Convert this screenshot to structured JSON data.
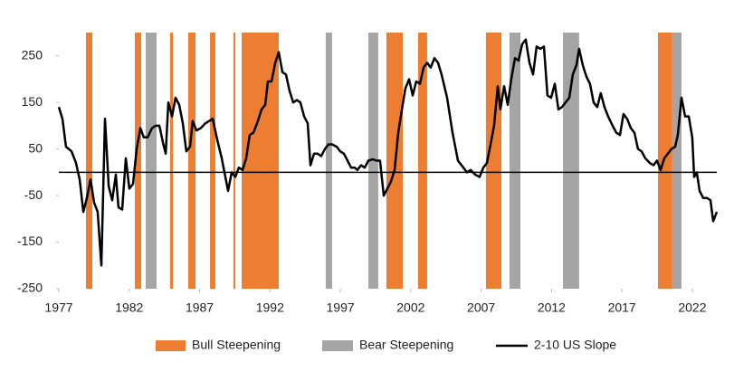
{
  "chart_data": {
    "type": "line",
    "x": [
      1977.0,
      1977.26,
      1977.51,
      1977.9,
      1978.22,
      1978.48,
      1978.74,
      1978.99,
      1979.25,
      1979.51,
      1979.76,
      1980.02,
      1980.28,
      1980.54,
      1980.79,
      1981.05,
      1981.24,
      1981.5,
      1981.76,
      1982.01,
      1982.27,
      1982.53,
      1982.79,
      1983.04,
      1983.3,
      1983.62,
      1983.88,
      1984.14,
      1984.39,
      1984.59,
      1984.78,
      1985.04,
      1985.29,
      1985.55,
      1985.81,
      1986.06,
      1986.32,
      1986.51,
      1986.77,
      1987.09,
      1987.41,
      1987.93,
      1988.25,
      1988.57,
      1989.02,
      1989.28,
      1989.54,
      1989.79,
      1990.05,
      1990.31,
      1990.56,
      1990.82,
      1991.14,
      1991.4,
      1991.66,
      1991.85,
      1992.11,
      1992.37,
      1992.62,
      1992.88,
      1993.14,
      1993.39,
      1993.65,
      1993.91,
      1994.16,
      1994.42,
      1994.68,
      1994.87,
      1995.13,
      1995.39,
      1995.64,
      1995.9,
      1996.16,
      1996.41,
      1996.74,
      1996.99,
      1997.25,
      1997.51,
      1997.76,
      1998.02,
      1998.21,
      1998.47,
      1998.73,
      1998.99,
      1999.31,
      1999.56,
      1999.82,
      2000.08,
      2000.34,
      2000.59,
      2000.85,
      2001.11,
      2001.37,
      2001.62,
      2001.88,
      2002.14,
      2002.39,
      2002.65,
      2002.91,
      2003.16,
      2003.42,
      2003.68,
      2003.94,
      2004.19,
      2004.58,
      2004.97,
      2005.35,
      2005.74,
      2005.99,
      2006.25,
      2006.57,
      2006.89,
      2007.15,
      2007.41,
      2007.67,
      2007.92,
      2008.18,
      2008.37,
      2008.63,
      2008.89,
      2009.14,
      2009.4,
      2009.66,
      2009.91,
      2010.17,
      2010.43,
      2010.69,
      2010.94,
      2011.2,
      2011.46,
      2011.71,
      2011.97,
      2012.23,
      2012.49,
      2012.74,
      2013.0,
      2013.26,
      2013.51,
      2013.77,
      2013.96,
      2014.22,
      2014.48,
      2014.73,
      2014.99,
      2015.25,
      2015.5,
      2015.76,
      2016.02,
      2016.34,
      2016.6,
      2016.86,
      2017.11,
      2017.37,
      2017.63,
      2017.89,
      2018.14,
      2018.4,
      2018.66,
      2018.98,
      2019.24,
      2019.49,
      2019.75,
      2020.01,
      2020.26,
      2020.52,
      2020.78,
      2020.97,
      2021.23,
      2021.49,
      2021.75,
      2022.0,
      2022.13,
      2022.32,
      2022.52,
      2022.77,
      2023.03,
      2023.29,
      2023.48,
      2023.74
    ],
    "series": [
      {
        "name": "2-10 US Slope",
        "color": "#000000",
        "values": [
          140,
          115,
          55,
          45,
          20,
          -15,
          -85,
          -55,
          -15,
          -65,
          -85,
          -200,
          115,
          -30,
          -60,
          -5,
          -75,
          -80,
          30,
          -35,
          -25,
          50,
          95,
          75,
          75,
          95,
          100,
          100,
          65,
          40,
          150,
          120,
          160,
          145,
          105,
          45,
          55,
          110,
          90,
          95,
          105,
          115,
          70,
          30,
          -40,
          0,
          -10,
          10,
          5,
          30,
          80,
          85,
          110,
          135,
          145,
          195,
          195,
          235,
          258,
          215,
          210,
          175,
          150,
          155,
          150,
          120,
          105,
          15,
          40,
          40,
          35,
          50,
          60,
          60,
          55,
          45,
          40,
          25,
          10,
          10,
          5,
          15,
          10,
          25,
          28,
          25,
          25,
          -50,
          -35,
          -20,
          5,
          85,
          135,
          180,
          200,
          165,
          195,
          190,
          225,
          235,
          225,
          245,
          235,
          210,
          160,
          85,
          25,
          10,
          0,
          5,
          -5,
          -10,
          10,
          20,
          60,
          100,
          185,
          135,
          185,
          145,
          200,
          245,
          240,
          275,
          285,
          235,
          210,
          270,
          265,
          270,
          165,
          160,
          190,
          135,
          140,
          150,
          160,
          210,
          230,
          265,
          230,
          205,
          190,
          150,
          140,
          170,
          140,
          120,
          100,
          85,
          80,
          125,
          115,
          95,
          85,
          50,
          45,
          30,
          20,
          15,
          25,
          5,
          30,
          40,
          50,
          55,
          80,
          160,
          120,
          120,
          75,
          -10,
          0,
          -40,
          -55,
          -55,
          -60,
          -105,
          -85
        ]
      }
    ],
    "regions": [
      {
        "name": "Bull Steepening",
        "color": "#ed7d31",
        "spans": [
          [
            1978.93,
            1979.38
          ],
          [
            1982.4,
            1982.85
          ],
          [
            1984.91,
            1985.1
          ],
          [
            1986.19,
            1986.71
          ],
          [
            1987.74,
            1988.12
          ],
          [
            1989.41,
            1989.54
          ],
          [
            1989.99,
            1992.62
          ],
          [
            2000.27,
            2001.43
          ],
          [
            2002.52,
            2003.16
          ],
          [
            2007.34,
            2008.44
          ],
          [
            2019.56,
            2020.58
          ]
        ]
      },
      {
        "name": "Bear Steepening",
        "color": "#a5a5a5",
        "spans": [
          [
            1983.17,
            1983.94
          ],
          [
            1995.96,
            1996.41
          ],
          [
            1998.99,
            1999.69
          ],
          [
            2009.01,
            2009.79
          ],
          [
            2012.81,
            2013.96
          ],
          [
            2020.58,
            2021.23
          ]
        ]
      }
    ],
    "xlim": [
      1977,
      2023.74
    ],
    "xticks": [
      1977,
      1982,
      1987,
      1992,
      1997,
      2002,
      2007,
      2012,
      2017,
      2022
    ],
    "ylim": [
      -250,
      300
    ],
    "yticks": [
      -250,
      -150,
      -50,
      50,
      150,
      250
    ]
  }
}
